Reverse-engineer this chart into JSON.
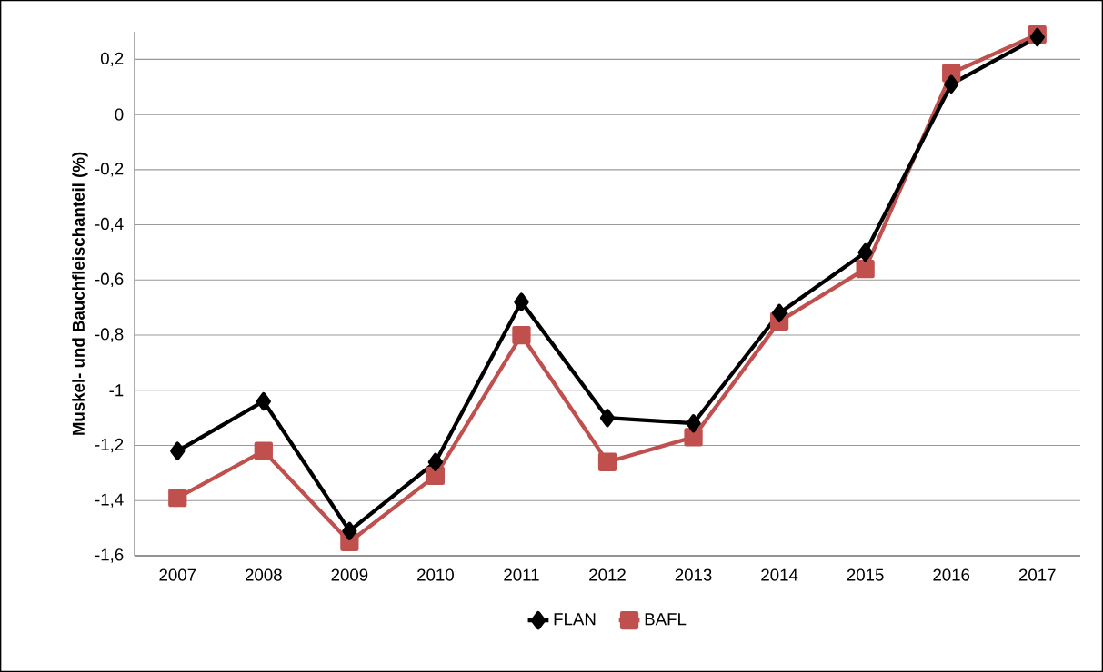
{
  "chart_data": {
    "type": "line",
    "ylabel": "Muskel- und Bauchfleischanteil (%)",
    "categories": [
      "2007",
      "2008",
      "2009",
      "2010",
      "2011",
      "2012",
      "2013",
      "2014",
      "2015",
      "2016",
      "2017"
    ],
    "series": [
      {
        "name": "FLAN",
        "color": "#000000",
        "marker": "diamond",
        "values": [
          -1.22,
          -1.04,
          -1.51,
          -1.26,
          -0.68,
          -1.1,
          -1.12,
          -0.72,
          -0.5,
          0.11,
          0.28
        ]
      },
      {
        "name": "BAFL",
        "color": "#c0504d",
        "marker": "square",
        "values": [
          -1.39,
          -1.22,
          -1.55,
          -1.31,
          -0.8,
          -1.26,
          -1.17,
          -0.75,
          -0.56,
          0.15,
          0.29
        ]
      }
    ],
    "ylim": [
      -1.6,
      0.3
    ],
    "yticks": [
      {
        "value": -1.6,
        "label": "-1,6"
      },
      {
        "value": -1.4,
        "label": "-1,4"
      },
      {
        "value": -1.2,
        "label": "-1,2"
      },
      {
        "value": -1,
        "label": "-1"
      },
      {
        "value": -0.8,
        "label": "-0,8"
      },
      {
        "value": -0.6,
        "label": "-0,6"
      },
      {
        "value": -0.4,
        "label": "-0,4"
      },
      {
        "value": -0.2,
        "label": "-0,2"
      },
      {
        "value": 0,
        "label": "0"
      },
      {
        "value": 0.2,
        "label": "0,2"
      }
    ],
    "grid": "y",
    "legend": "bottom",
    "line_style": "solid"
  }
}
